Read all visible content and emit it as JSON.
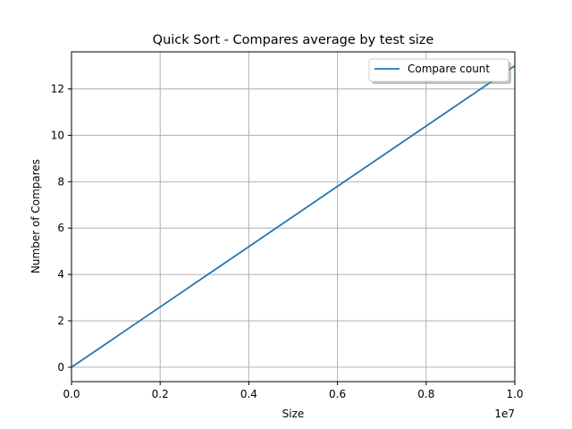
{
  "chart_data": {
    "type": "line",
    "title": "Quick Sort - Compares average by test size",
    "xlabel": "Size",
    "ylabel": "Number of Compares",
    "x_offset_label": "1e7",
    "xlim": [
      0,
      1.0
    ],
    "ylim": [
      -0.62,
      13.6
    ],
    "xticks": [
      0.0,
      0.2,
      0.4,
      0.6,
      0.8,
      1.0
    ],
    "xtick_labels": [
      "0.0",
      "0.2",
      "0.4",
      "0.6",
      "0.8",
      "1.0"
    ],
    "yticks": [
      0,
      2,
      4,
      6,
      8,
      10,
      12
    ],
    "ytick_labels": [
      "0",
      "2",
      "4",
      "6",
      "8",
      "10",
      "12"
    ],
    "grid": true,
    "legend": {
      "position": "top-right"
    },
    "series": [
      {
        "name": "Compare count",
        "color": "#1f77b4",
        "x": [
          0.0,
          0.2,
          0.4,
          0.6,
          0.8,
          1.0
        ],
        "y": [
          0.0,
          2.6,
          5.2,
          7.8,
          10.4,
          13.0
        ]
      }
    ]
  }
}
